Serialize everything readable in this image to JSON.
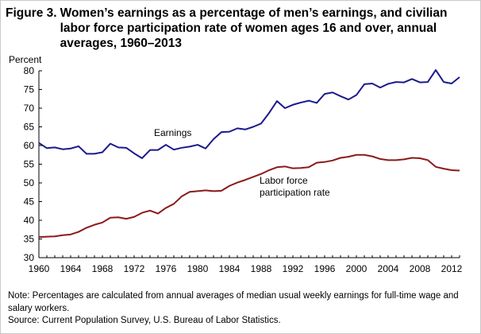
{
  "title": {
    "figure_label": "Figure 3.",
    "text": "Women’s earnings as a percentage of men’s earnings, and civilian labor force participation rate of women ages 16 and over, annual averages, 1960–2013"
  },
  "notes": {
    "note": "Note: Percentages are calculated from annual averages of median usual weekly earnings for full-time wage and salary workers.",
    "source": "Source: Current Population Survey, U.S. Bureau of Labor Statistics."
  },
  "colors": {
    "earnings": "#1a1a8c",
    "participation": "#8b1a1a"
  },
  "chart_data": {
    "type": "line",
    "title": "Figure 3. Women’s earnings as a percentage of men’s earnings, and civilian labor force participation rate of women ages 16 and over, annual averages, 1960–2013",
    "ylabel": "Percent",
    "xlabel": "",
    "xlim": [
      1960,
      2013
    ],
    "ylim": [
      30,
      80
    ],
    "yticks": [
      30,
      35,
      40,
      45,
      50,
      55,
      60,
      65,
      70,
      75,
      80
    ],
    "xticks": [
      1960,
      1964,
      1968,
      1972,
      1976,
      1980,
      1984,
      1988,
      1992,
      1996,
      2000,
      2004,
      2008,
      2012
    ],
    "grid": false,
    "legend": "none",
    "x": [
      1960,
      1961,
      1962,
      1963,
      1964,
      1965,
      1966,
      1967,
      1968,
      1969,
      1970,
      1971,
      1972,
      1973,
      1974,
      1975,
      1976,
      1977,
      1978,
      1979,
      1980,
      1981,
      1982,
      1983,
      1984,
      1985,
      1986,
      1987,
      1988,
      1989,
      1990,
      1991,
      1992,
      1993,
      1994,
      1995,
      1996,
      1997,
      1998,
      1999,
      2000,
      2001,
      2002,
      2003,
      2004,
      2005,
      2006,
      2007,
      2008,
      2009,
      2010,
      2011,
      2012,
      2013
    ],
    "series": [
      {
        "name": "Earnings",
        "values": [
          60.7,
          59.3,
          59.5,
          59.0,
          59.2,
          59.8,
          57.8,
          57.8,
          58.2,
          60.5,
          59.5,
          59.4,
          57.9,
          56.6,
          58.8,
          58.8,
          60.2,
          58.9,
          59.4,
          59.7,
          60.2,
          59.2,
          61.7,
          63.6,
          63.7,
          64.6,
          64.3,
          65.0,
          65.9,
          68.7,
          71.9,
          70.0,
          70.9,
          71.5,
          72.0,
          71.4,
          73.8,
          74.2,
          73.2,
          72.3,
          73.5,
          76.4,
          76.6,
          75.5,
          76.5,
          77.0,
          76.9,
          77.8,
          76.9,
          77.0,
          80.2,
          77.0,
          76.6,
          78.3
        ]
      },
      {
        "name": "Labor force participation rate",
        "values": [
          35.5,
          35.6,
          35.7,
          36.0,
          36.2,
          36.9,
          38.0,
          38.8,
          39.4,
          40.7,
          40.8,
          40.4,
          40.9,
          42.0,
          42.6,
          41.8,
          43.3,
          44.4,
          46.4,
          47.6,
          47.8,
          48.0,
          47.8,
          47.9,
          49.2,
          50.1,
          50.8,
          51.6,
          52.4,
          53.4,
          54.2,
          54.4,
          53.9,
          54.0,
          54.2,
          55.4,
          55.6,
          56.0,
          56.7,
          57.0,
          57.5,
          57.5,
          57.1,
          56.4,
          56.1,
          56.1,
          56.3,
          56.7,
          56.6,
          56.1,
          54.3,
          53.8,
          53.4,
          53.3
        ]
      }
    ],
    "annotations": [
      {
        "text": "Earnings",
        "series": "Earnings"
      },
      {
        "text": "Labor force",
        "series": "Labor force participation rate"
      },
      {
        "text": "participation  rate",
        "series": "Labor force participation rate"
      }
    ]
  }
}
